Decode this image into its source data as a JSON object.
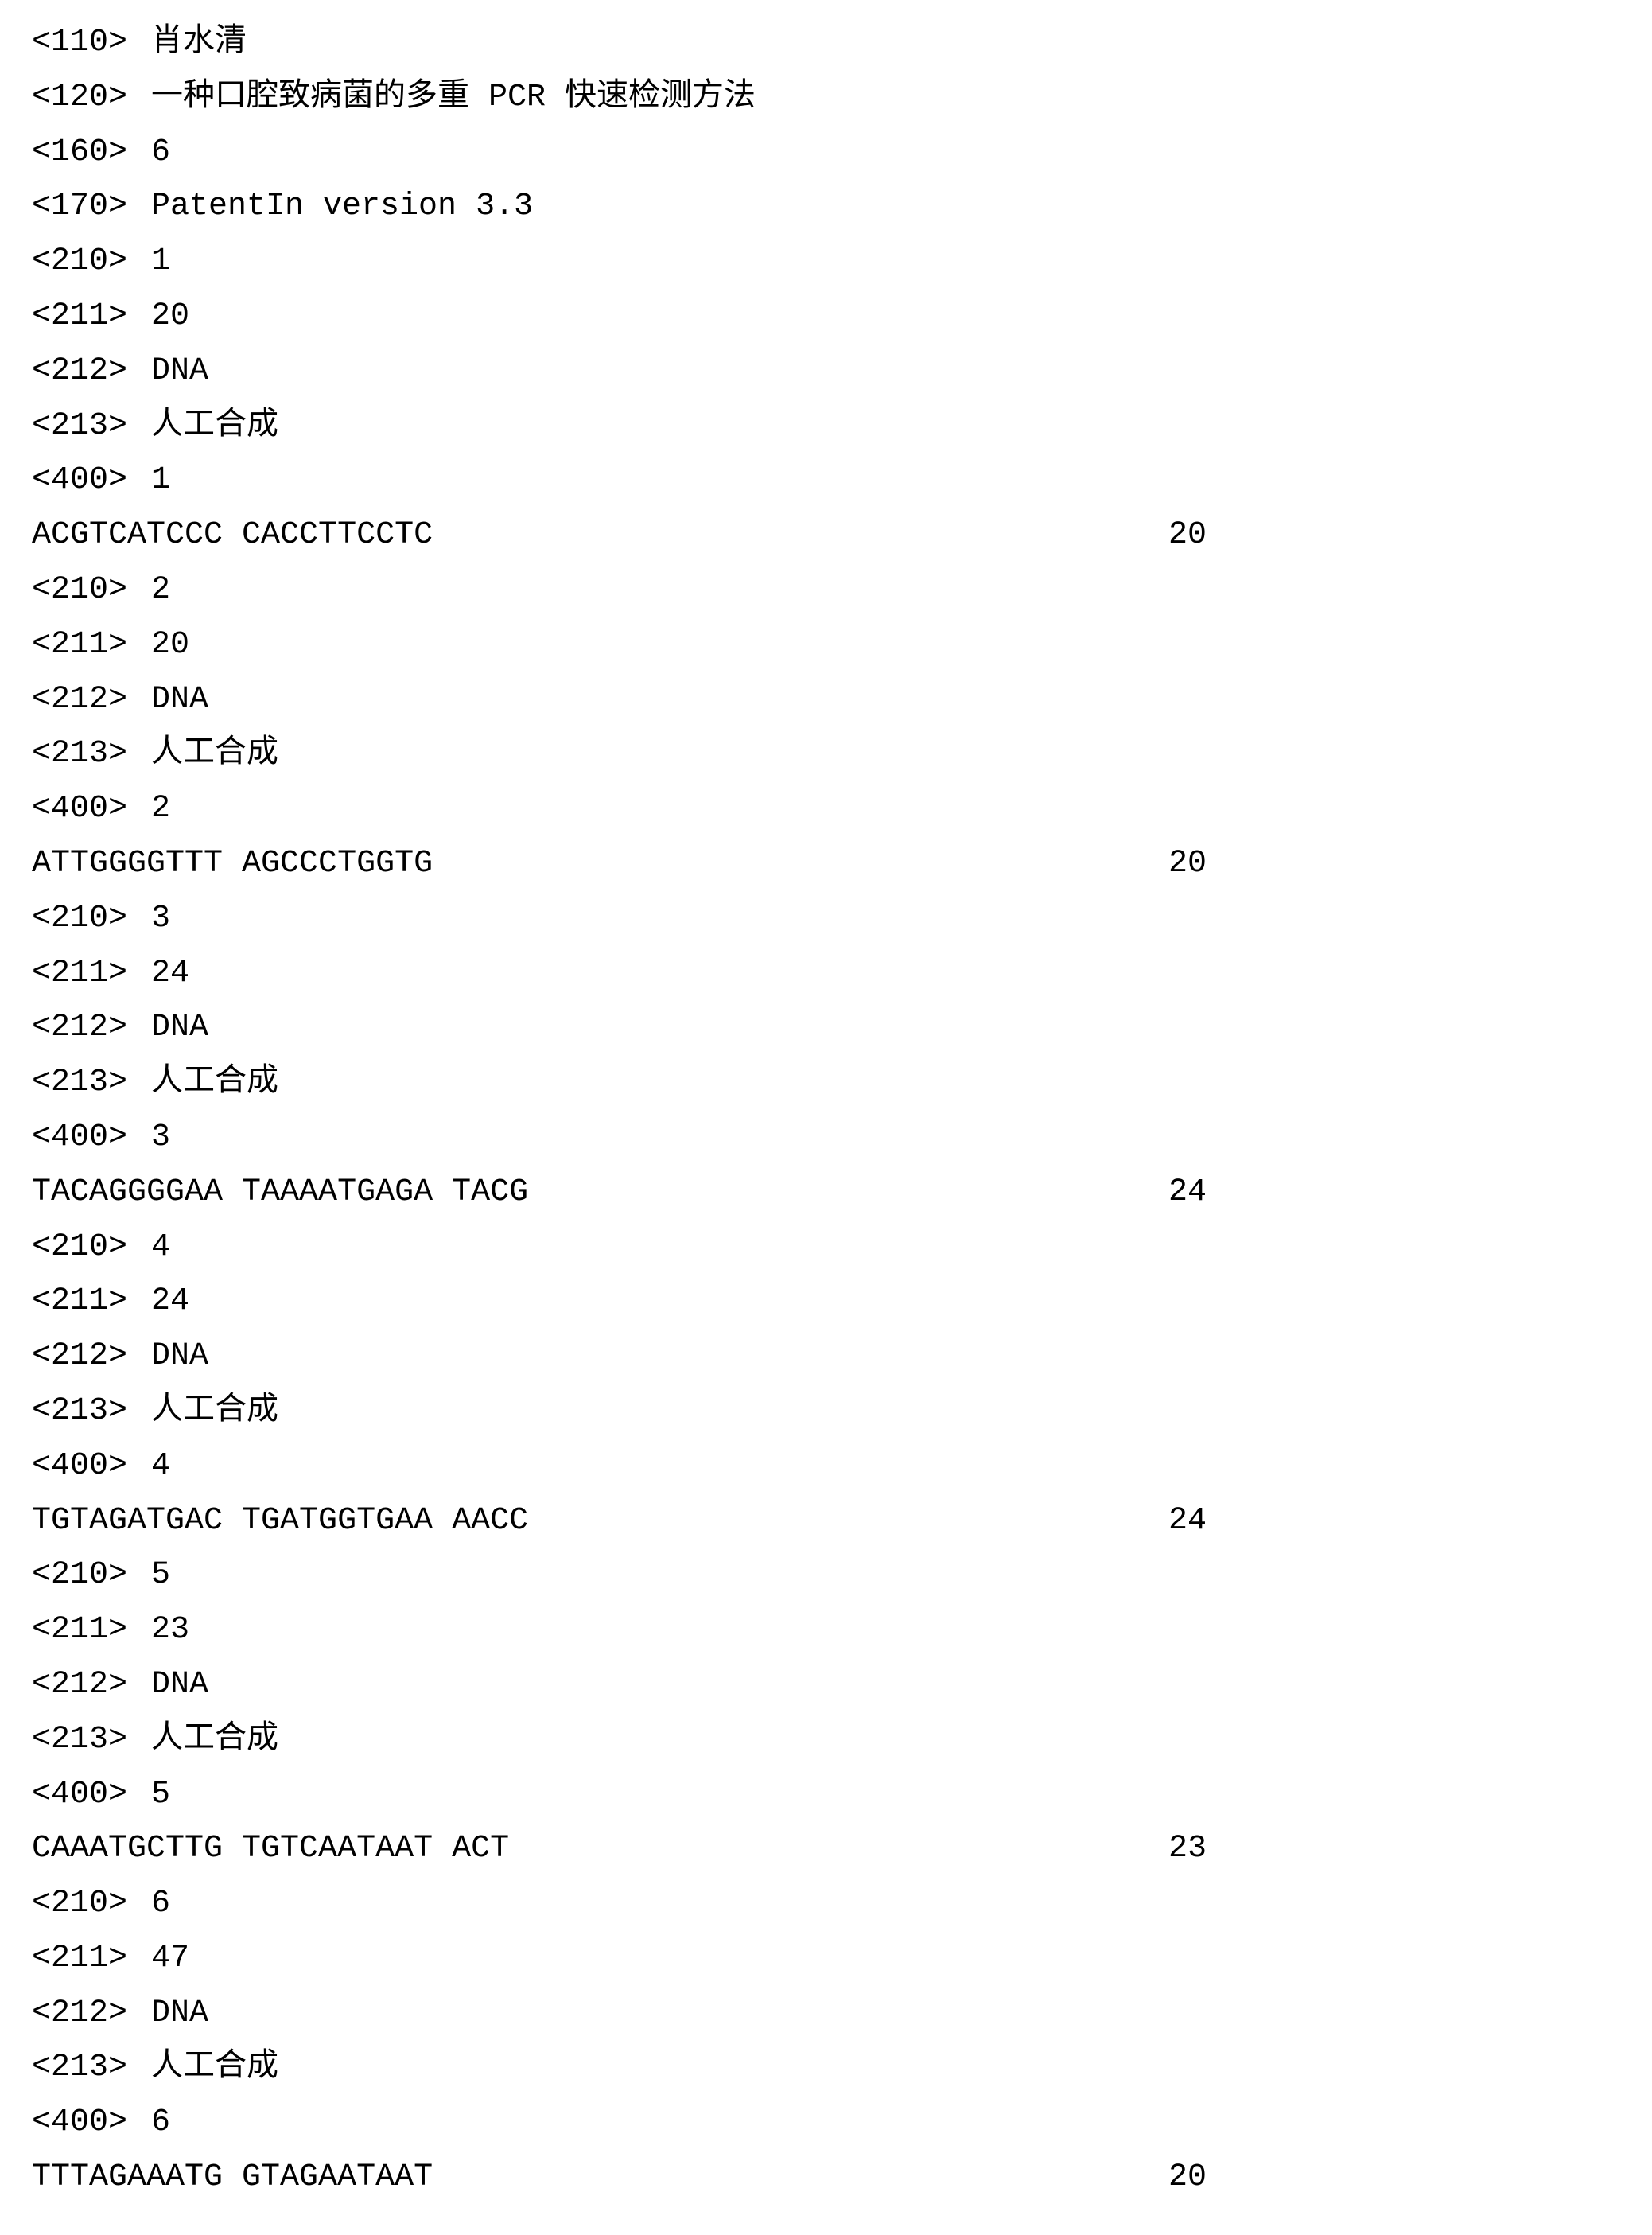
{
  "header": {
    "tag110": {
      "label": "<110>",
      "value": "肖水清"
    },
    "tag120": {
      "label": "<120>",
      "value": "一种口腔致病菌的多重 PCR 快速检测方法"
    },
    "tag160": {
      "label": "<160>",
      "value": "6"
    },
    "tag170": {
      "label": "<170>",
      "value": "PatentIn version 3.3"
    }
  },
  "sequences": [
    {
      "tag210": {
        "label": "<210>",
        "value": "1"
      },
      "tag211": {
        "label": "<211>",
        "value": "20"
      },
      "tag212": {
        "label": "<212>",
        "value": "DNA"
      },
      "tag213": {
        "label": "<213>",
        "value": "人工合成"
      },
      "tag400": {
        "label": "<400>",
        "value": "1"
      },
      "sequence": "ACGTCATCCC CACCTTCCTC",
      "length": "20"
    },
    {
      "tag210": {
        "label": "<210>",
        "value": "2"
      },
      "tag211": {
        "label": "<211>",
        "value": "20"
      },
      "tag212": {
        "label": "<212>",
        "value": "DNA"
      },
      "tag213": {
        "label": "<213>",
        "value": "人工合成"
      },
      "tag400": {
        "label": "<400>",
        "value": "2"
      },
      "sequence": "ATTGGGGTTT AGCCCTGGTG",
      "length": "20"
    },
    {
      "tag210": {
        "label": "<210>",
        "value": "3"
      },
      "tag211": {
        "label": "<211>",
        "value": "24"
      },
      "tag212": {
        "label": "<212>",
        "value": "DNA"
      },
      "tag213": {
        "label": "<213>",
        "value": "人工合成"
      },
      "tag400": {
        "label": "<400>",
        "value": "3"
      },
      "sequence": "TACAGGGGAA TAAAATGAGA TACG",
      "length": "24"
    },
    {
      "tag210": {
        "label": "<210>",
        "value": "4"
      },
      "tag211": {
        "label": "<211>",
        "value": "24"
      },
      "tag212": {
        "label": "<212>",
        "value": "DNA"
      },
      "tag213": {
        "label": "<213>",
        "value": "人工合成"
      },
      "tag400": {
        "label": "<400>",
        "value": "4"
      },
      "sequence": "TGTAGATGAC TGATGGTGAA AACC",
      "length": "24"
    },
    {
      "tag210": {
        "label": "<210>",
        "value": "5"
      },
      "tag211": {
        "label": "<211>",
        "value": "23"
      },
      "tag212": {
        "label": "<212>",
        "value": "DNA"
      },
      "tag213": {
        "label": "<213>",
        "value": "人工合成"
      },
      "tag400": {
        "label": "<400>",
        "value": "5"
      },
      "sequence": "CAAATGCTTG TGTCAATAAT ACT",
      "length": "23"
    },
    {
      "tag210": {
        "label": "<210>",
        "value": "6"
      },
      "tag211": {
        "label": "<211>",
        "value": "47"
      },
      "tag212": {
        "label": "<212>",
        "value": "DNA"
      },
      "tag213": {
        "label": "<213>",
        "value": "人工合成"
      },
      "tag400": {
        "label": "<400>",
        "value": "6"
      },
      "sequence": "TTTAGAAATG GTAGAATAAT",
      "length": "20"
    }
  ]
}
